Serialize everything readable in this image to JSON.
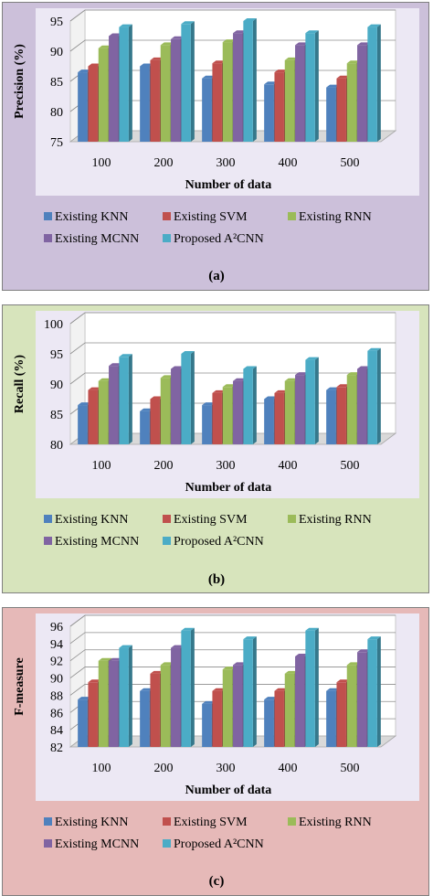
{
  "colors": {
    "panel_backgrounds": [
      "#ccc0da",
      "#d7e4bc",
      "#e6b9b8"
    ],
    "plot_area": "#ece8f4",
    "series": [
      "#4f81bd",
      "#c0504d",
      "#9bbb59",
      "#8064a2",
      "#4bacc6"
    ]
  },
  "chart_data": [
    {
      "type": "bar",
      "title": "",
      "xlabel": "Number of data",
      "ylabel": "Precision (%)",
      "categories": [
        "100",
        "200",
        "300",
        "400",
        "500"
      ],
      "ylim": [
        75,
        95
      ],
      "yticks": [
        "75",
        "80",
        "85",
        "90",
        "95"
      ],
      "grid": true,
      "legend_position": "bottom",
      "caption": "(a)",
      "series": [
        {
          "name": "Existing KNN",
          "values": [
            86.5,
            87.5,
            85.5,
            84.5,
            84
          ]
        },
        {
          "name": "Existing SVM",
          "values": [
            87.5,
            88.5,
            88,
            86.5,
            85.5
          ]
        },
        {
          "name": "Existing RNN",
          "values": [
            90.5,
            91,
            91.5,
            88.5,
            88
          ]
        },
        {
          "name": "Existing MCNN",
          "values": [
            92.5,
            92,
            93,
            91,
            91
          ]
        },
        {
          "name": "Proposed A²CNN",
          "values": [
            94,
            94.5,
            95,
            93,
            94
          ]
        }
      ]
    },
    {
      "type": "bar",
      "title": "",
      "xlabel": "Number of data",
      "ylabel": "Recall (%)",
      "categories": [
        "100",
        "200",
        "300",
        "400",
        "500"
      ],
      "ylim": [
        80,
        100
      ],
      "yticks": [
        "80",
        "85",
        "90",
        "95",
        "100"
      ],
      "grid": true,
      "legend_position": "bottom",
      "caption": "(b)",
      "series": [
        {
          "name": "Existing KNN",
          "values": [
            86.5,
            85.5,
            86.5,
            87.5,
            89
          ]
        },
        {
          "name": "Existing SVM",
          "values": [
            89,
            87.5,
            88.5,
            88.5,
            89.5
          ]
        },
        {
          "name": "Existing RNN",
          "values": [
            90.5,
            91,
            89.5,
            90.5,
            91.5
          ]
        },
        {
          "name": "Existing MCNN",
          "values": [
            93,
            92.5,
            90.5,
            91.5,
            92.5
          ]
        },
        {
          "name": "Proposed A²CNN",
          "values": [
            94.5,
            95,
            92.5,
            94,
            95.5
          ]
        }
      ]
    },
    {
      "type": "bar",
      "title": "",
      "xlabel": "Number of data",
      "ylabel": "F-measure",
      "categories": [
        "100",
        "200",
        "300",
        "400",
        "500"
      ],
      "ylim": [
        82,
        96
      ],
      "yticks": [
        "82",
        "84",
        "86",
        "88",
        "90",
        "92",
        "94",
        "96"
      ],
      "grid": true,
      "legend_position": "bottom",
      "caption": "(c)",
      "series": [
        {
          "name": "Existing KNN",
          "values": [
            87.5,
            88.5,
            87,
            87.5,
            88.5
          ]
        },
        {
          "name": "Existing SVM",
          "values": [
            89.5,
            90.5,
            88.5,
            88.5,
            89.5
          ]
        },
        {
          "name": "Existing RNN",
          "values": [
            92,
            91.5,
            91,
            90.5,
            91.5
          ]
        },
        {
          "name": "Existing MCNN",
          "values": [
            92,
            93.5,
            91.5,
            92.5,
            93
          ]
        },
        {
          "name": "Proposed A²CNN",
          "values": [
            93.5,
            95.5,
            94.5,
            95.5,
            94.5
          ]
        }
      ]
    }
  ]
}
